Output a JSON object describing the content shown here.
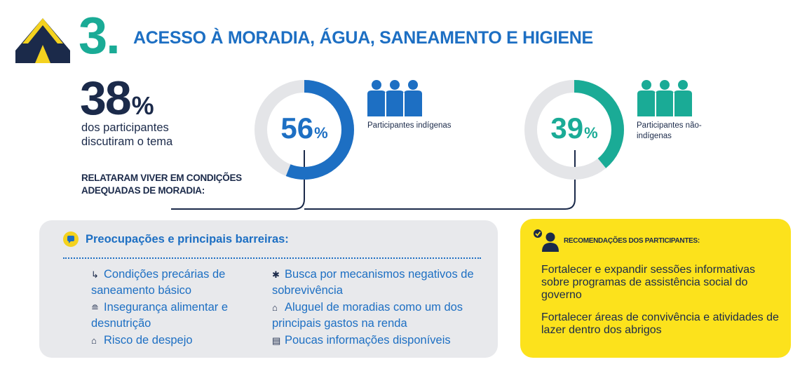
{
  "header": {
    "number": "3.",
    "title": "ACESSO À MORADIA, ÁGUA, SANEAMENTO E HIGIENE",
    "icon": "tent-icon"
  },
  "stat": {
    "value": "38",
    "unit": "%",
    "description": "dos participantes discutiram o tema"
  },
  "reported_label": "RELATARAM VIVER EM CONDIÇÕES ADEQUADAS DE MORADIA:",
  "groups": [
    {
      "value": "56",
      "unit": "%",
      "fraction": 0.56,
      "label": "Participantes indígenas",
      "color": "#1d6fc3",
      "icon": "people-icon"
    },
    {
      "value": "39",
      "unit": "%",
      "fraction": 0.39,
      "label": "Participantes não-indígenas",
      "color": "#1aab96",
      "icon": "people-icon"
    }
  ],
  "concerns": {
    "title": "Preocupações e principais barreiras:",
    "icon": "chat-icon",
    "items": [
      {
        "icon": "pipe-icon",
        "text": "Condições precárias de saneamento básico"
      },
      {
        "icon": "food-icon",
        "text": "Insegurança alimentar e desnutrição"
      },
      {
        "icon": "house-icon",
        "text": "Risco de despejo"
      },
      {
        "icon": "running-person-icon",
        "text": "Busca por mecanismos negativos de sobrevivência"
      },
      {
        "icon": "house-icon",
        "text": "Aluguel de moradias como um dos principais gastos na renda"
      },
      {
        "icon": "document-icon",
        "text": "Poucas informações disponíveis"
      }
    ]
  },
  "recommendations": {
    "title": "RECOMENDAÇÕES DOS PARTICIPANTES:",
    "icon": "person-check-icon",
    "items": [
      "Fortalecer e expandir sessões informativas sobre programas de assistência social do governo",
      "Fortalecer áreas de convivência e atividades de lazer dentro dos abrigos"
    ]
  },
  "colors": {
    "navy": "#1b2a4a",
    "blue": "#1d6fc3",
    "teal": "#1aab96",
    "yellow": "#fce21c",
    "grey": "#e8e9ec"
  }
}
